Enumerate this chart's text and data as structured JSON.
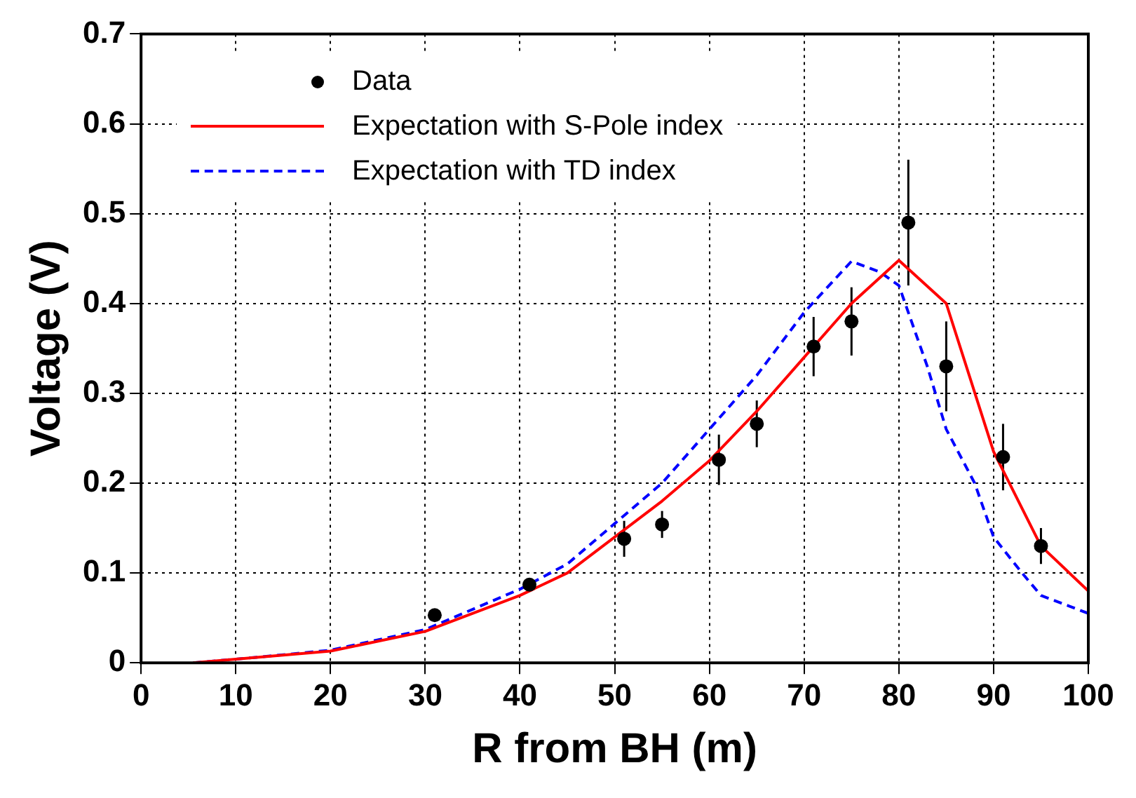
{
  "chart_data": {
    "type": "line",
    "xlabel": "R from BH (m)",
    "ylabel": "Voltage (V)",
    "xlim": [
      0,
      100
    ],
    "ylim": [
      0,
      0.7
    ],
    "xticks": [
      0,
      10,
      20,
      30,
      40,
      50,
      60,
      70,
      80,
      90,
      100
    ],
    "yticks": [
      0,
      0.1,
      0.2,
      0.3,
      0.4,
      0.5,
      0.6,
      0.7
    ],
    "grid": true,
    "legend": "top left",
    "series": [
      {
        "name": "Data",
        "type": "scatter",
        "color": "#000000",
        "marker": "circle",
        "x": [
          31,
          41,
          51,
          55,
          61,
          65,
          71,
          75,
          81,
          85,
          91,
          95
        ],
        "values": [
          0.053,
          0.087,
          0.138,
          0.154,
          0.226,
          0.266,
          0.352,
          0.38,
          0.49,
          0.33,
          0.229,
          0.13
        ],
        "errors": [
          null,
          null,
          0.02,
          0.015,
          0.028,
          0.026,
          0.033,
          0.038,
          0.07,
          0.05,
          0.037,
          0.02
        ]
      },
      {
        "name": "Expectation with S-Pole index",
        "type": "line",
        "color": "#ff0000",
        "line_style": "solid",
        "marker": "none",
        "x": [
          5.5,
          10,
          20,
          30,
          40,
          45,
          50,
          55,
          60,
          65,
          70,
          75,
          80,
          85,
          90,
          95,
          100
        ],
        "values": [
          0,
          0.004,
          0.013,
          0.035,
          0.075,
          0.1,
          0.14,
          0.18,
          0.225,
          0.28,
          0.34,
          0.4,
          0.448,
          0.4,
          0.235,
          0.13,
          0.08
        ]
      },
      {
        "name": "Expectation with TD index",
        "type": "line",
        "color": "#0000ff",
        "line_style": "dashed",
        "marker": "none",
        "x": [
          5.5,
          10,
          20,
          30,
          40,
          45,
          50,
          55,
          60,
          65,
          70,
          75,
          78,
          80,
          83,
          85,
          88,
          90,
          93,
          95,
          100
        ],
        "values": [
          0,
          0.004,
          0.014,
          0.037,
          0.082,
          0.11,
          0.155,
          0.2,
          0.26,
          0.32,
          0.39,
          0.447,
          0.435,
          0.42,
          0.33,
          0.26,
          0.2,
          0.14,
          0.1,
          0.075,
          0.055
        ]
      }
    ]
  }
}
